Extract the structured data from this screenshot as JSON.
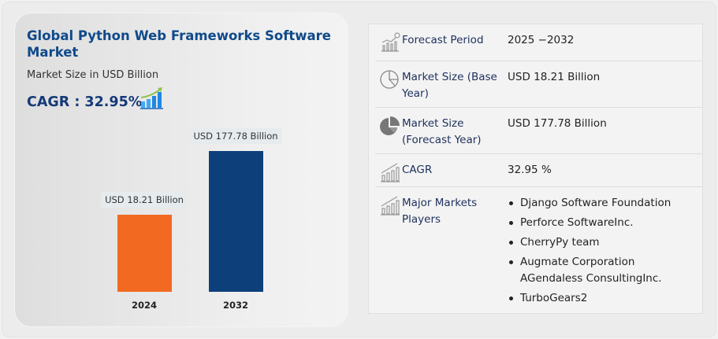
{
  "left": {
    "title": "Global Python Web Frameworks Software Market",
    "subtitle": "Market Size in USD Billion",
    "cagr": "CAGR : 32.95%"
  },
  "chart_data": {
    "type": "bar",
    "categories": [
      "2024",
      "2032"
    ],
    "values": [
      18.21,
      177.78
    ],
    "data_labels": [
      "USD 18.21 Billion",
      "USD 177.78 Billion"
    ],
    "colors": [
      "#f26a21",
      "#0d3f7a"
    ],
    "grid": false
  },
  "table": {
    "rows": [
      {
        "icon": "forecast-chart-icon",
        "label": "Forecast Period",
        "value": "2025 −2032"
      },
      {
        "icon": "pie-outline-icon",
        "label": "Market Size (Base Year)",
        "value": "USD 18.21 Billion"
      },
      {
        "icon": "pie-filled-icon",
        "label": "Market Size (Forecast Year)",
        "value": "USD 177.78 Billion"
      },
      {
        "icon": "growth-chart-icon",
        "label": "CAGR",
        "value": "32.95 %"
      },
      {
        "icon": "growth-chart-icon",
        "label": "Major Markets Players",
        "players": [
          "Django Software Foundation",
          "Perforce SoftwareInc.",
          "CherryPy team",
          "Augmate Corporation AGendaless ConsultingInc.",
          "TurboGears2"
        ]
      }
    ]
  }
}
